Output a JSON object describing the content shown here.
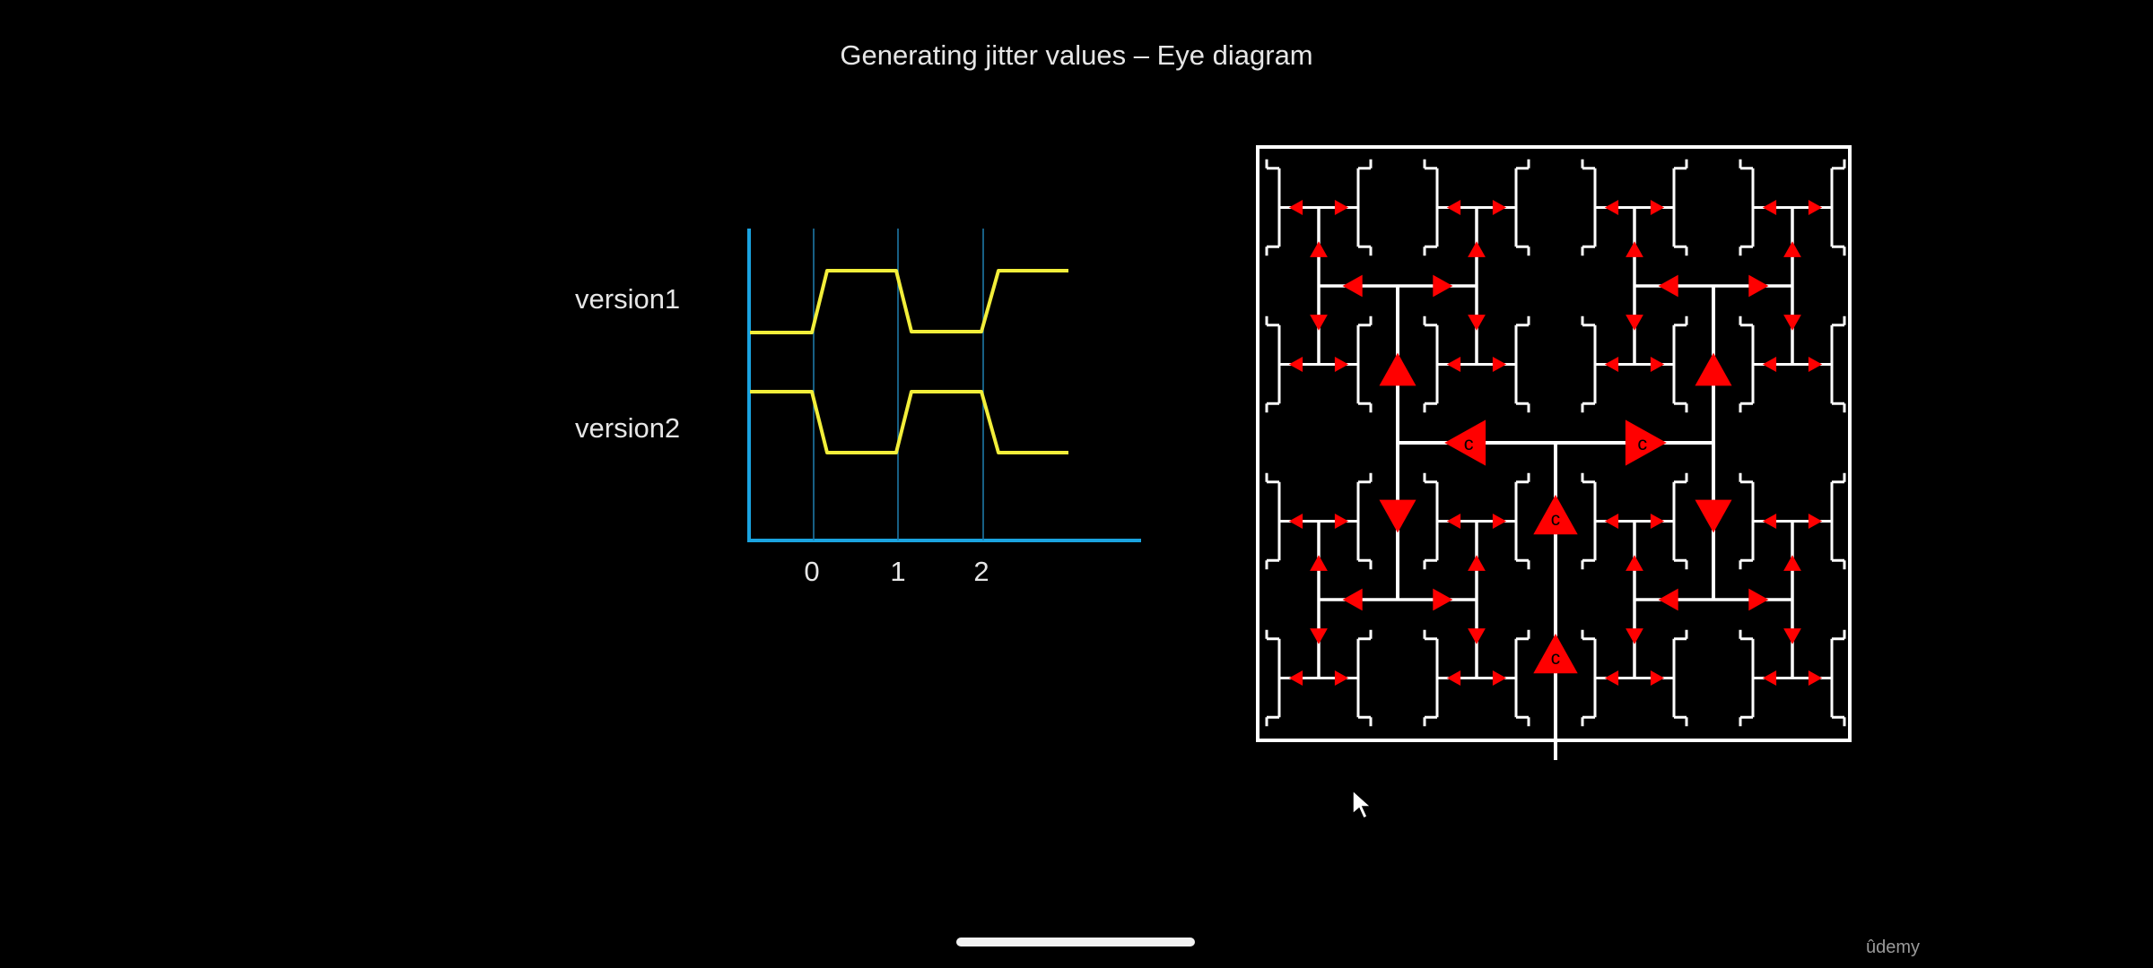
{
  "slide": {
    "title": "Generating jitter values – Eye diagram"
  },
  "timing_diagram": {
    "signals": [
      {
        "label": "version1",
        "levels": [
          "low",
          "high",
          "low",
          "high"
        ]
      },
      {
        "label": "version2",
        "levels": [
          "high",
          "low",
          "high",
          "low"
        ]
      }
    ],
    "ticks": [
      "0",
      "1",
      "2"
    ],
    "colors": {
      "axis": "#1aa3e0",
      "signal": "#f2ee3a",
      "gridline": "#1f7fb0"
    }
  },
  "clock_tree": {
    "colors": {
      "border": "#ffffff",
      "wire": "#ffffff",
      "buffer": "#ff0000"
    },
    "buffer_mark": "c"
  },
  "footer": {
    "watermark": "ûdemy"
  }
}
